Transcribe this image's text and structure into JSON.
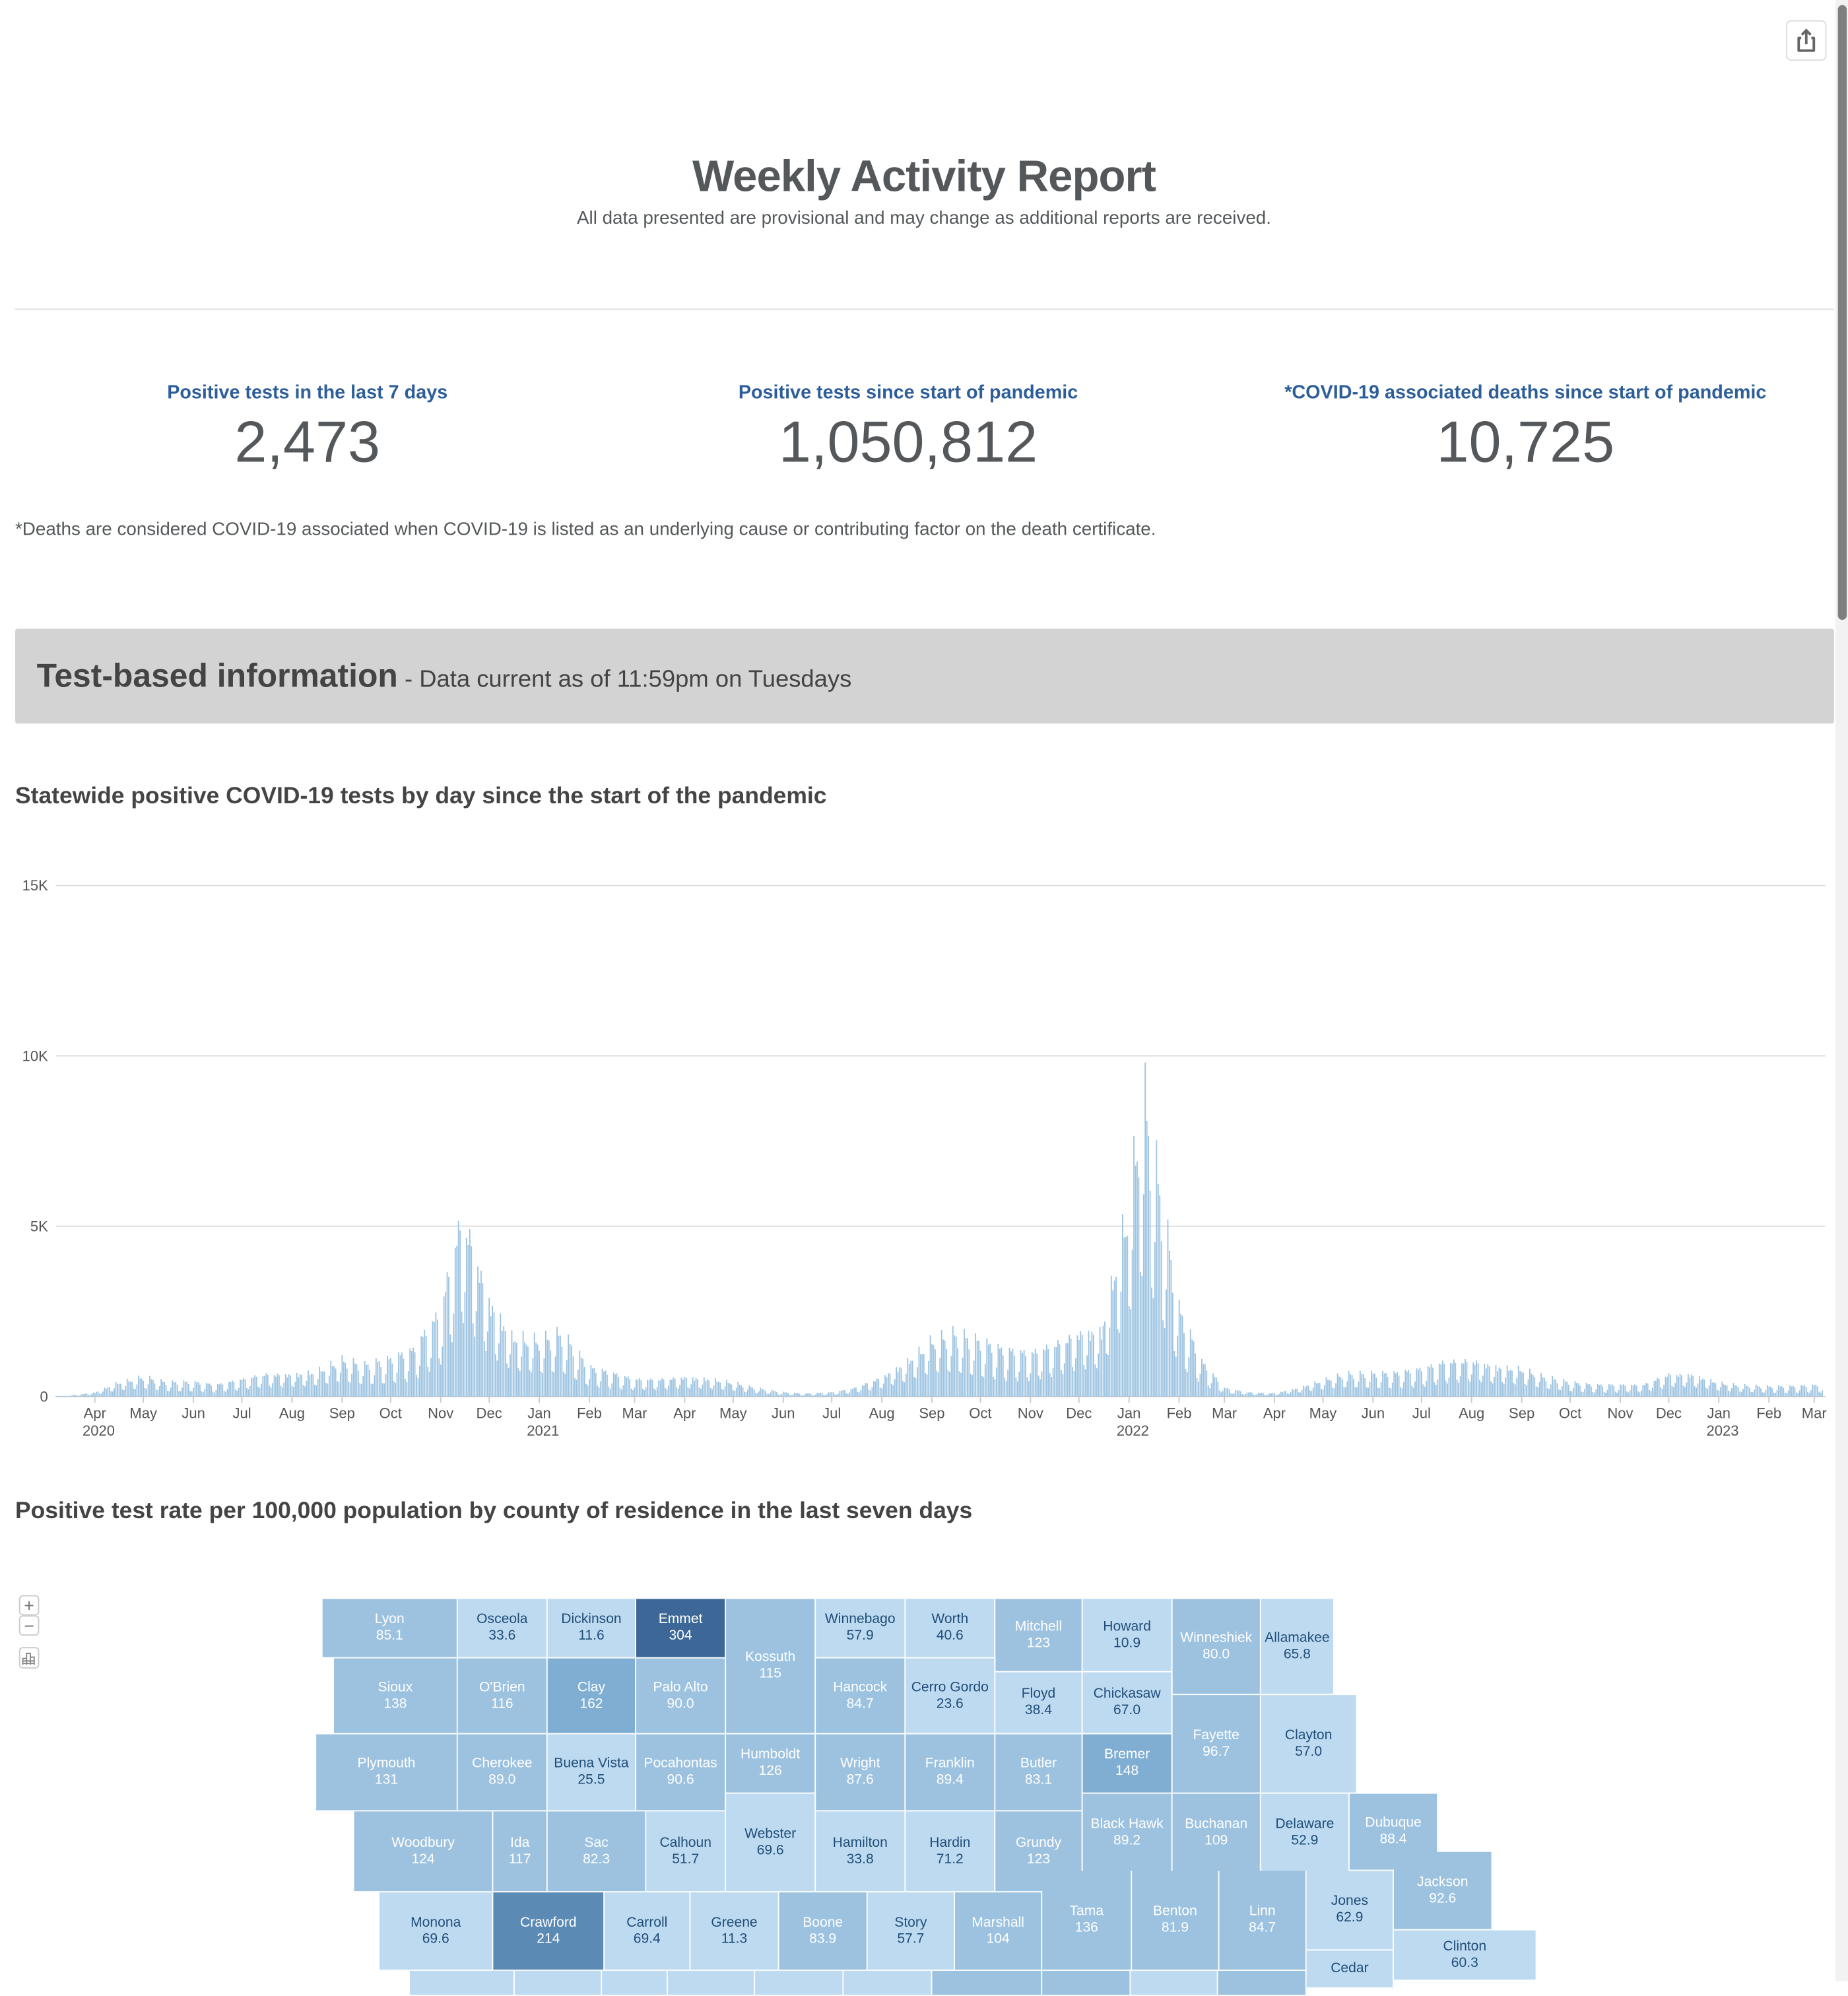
{
  "header": {
    "title": "Weekly Activity Report",
    "subtitle": "All data presented are provisional and may change as additional reports are received.",
    "share_icon": "share-icon"
  },
  "kpis": [
    {
      "label": "Positive tests in the last 7 days",
      "value": "2,473"
    },
    {
      "label": "Positive tests since start of pandemic",
      "value": "1,050,812"
    },
    {
      "label": "*COVID-19 associated deaths since start of pandemic",
      "value": "10,725"
    }
  ],
  "footnote": "*Deaths are considered COVID-19 associated when COVID-19 is listed as an underlying cause or contributing factor on the death certificate.",
  "banner": {
    "title": "Test-based information",
    "subtitle": " - Data current as of 11:59pm on Tuesdays"
  },
  "colors": {
    "kpi_label": "#2d5e99",
    "bar": "#9cc3e1",
    "map_light": "#bedaf0",
    "map_medium": "#9cc2e0",
    "map_darker": "#80aed3",
    "map_dark": "#5b8ab5",
    "map_darkest": "#3d6796",
    "banner_bg": "#d3d3d3"
  },
  "chart_title": "Statewide positive COVID-19 tests by day since the start of the pandemic",
  "chart_data": {
    "type": "bar",
    "title": "",
    "xlabel": "",
    "ylabel": "",
    "ylim": [
      0,
      15000
    ],
    "grid": true,
    "y_ticks": [
      "0",
      "5K",
      "10K",
      "15K"
    ],
    "y_tick_values": [
      0,
      5000,
      10000,
      15000
    ],
    "x_ticks": [
      {
        "label": "Apr",
        "year": "2020",
        "date": "2020-04-01"
      },
      {
        "label": "May",
        "date": "2020-05-01"
      },
      {
        "label": "Jun",
        "date": "2020-06-01"
      },
      {
        "label": "Jul",
        "date": "2020-07-01"
      },
      {
        "label": "Aug",
        "date": "2020-08-01"
      },
      {
        "label": "Sep",
        "date": "2020-09-01"
      },
      {
        "label": "Oct",
        "date": "2020-10-01"
      },
      {
        "label": "Nov",
        "date": "2020-11-01"
      },
      {
        "label": "Dec",
        "date": "2020-12-01"
      },
      {
        "label": "Jan",
        "year": "2021",
        "date": "2021-01-01"
      },
      {
        "label": "Feb",
        "date": "2021-02-01"
      },
      {
        "label": "Mar",
        "date": "2021-03-01"
      },
      {
        "label": "Apr",
        "date": "2021-04-01"
      },
      {
        "label": "May",
        "date": "2021-05-01"
      },
      {
        "label": "Jun",
        "date": "2021-06-01"
      },
      {
        "label": "Jul",
        "date": "2021-07-01"
      },
      {
        "label": "Aug",
        "date": "2021-08-01"
      },
      {
        "label": "Sep",
        "date": "2021-09-01"
      },
      {
        "label": "Oct",
        "date": "2021-10-01"
      },
      {
        "label": "Nov",
        "date": "2021-11-01"
      },
      {
        "label": "Dec",
        "date": "2021-12-01"
      },
      {
        "label": "Jan",
        "year": "2022",
        "date": "2022-01-01"
      },
      {
        "label": "Feb",
        "date": "2022-02-01"
      },
      {
        "label": "Mar",
        "date": "2022-03-01"
      },
      {
        "label": "Apr",
        "date": "2022-04-01"
      },
      {
        "label": "May",
        "date": "2022-05-01"
      },
      {
        "label": "Jun",
        "date": "2022-06-01"
      },
      {
        "label": "Jul",
        "date": "2022-07-01"
      },
      {
        "label": "Aug",
        "date": "2022-08-01"
      },
      {
        "label": "Sep",
        "date": "2022-09-01"
      },
      {
        "label": "Oct",
        "date": "2022-10-01"
      },
      {
        "label": "Nov",
        "date": "2022-11-01"
      },
      {
        "label": "Dec",
        "date": "2022-12-01"
      },
      {
        "label": "Jan",
        "year": "2023",
        "date": "2023-01-01"
      },
      {
        "label": "Feb",
        "date": "2023-02-01"
      },
      {
        "label": "Mar",
        "date": "2023-03-01"
      }
    ],
    "series": [
      {
        "x": [
          "2020-03-08",
          "2020-03-15",
          "2020-04-01",
          "2020-04-15",
          "2020-05-01",
          "2020-05-15",
          "2020-06-01",
          "2020-06-15",
          "2020-07-01",
          "2020-07-15",
          "2020-08-01",
          "2020-08-15",
          "2020-09-01",
          "2020-09-15",
          "2020-10-01",
          "2020-10-15",
          "2020-11-01",
          "2020-11-10",
          "2020-11-15",
          "2020-12-01",
          "2020-12-15",
          "2021-01-01",
          "2021-01-15",
          "2021-02-01",
          "2021-02-15",
          "2021-03-01",
          "2021-03-15",
          "2021-04-01",
          "2021-04-15",
          "2021-05-01",
          "2021-05-15",
          "2021-06-01",
          "2021-06-15",
          "2021-07-01",
          "2021-07-15",
          "2021-08-01",
          "2021-08-15",
          "2021-09-01",
          "2021-09-15",
          "2021-10-01",
          "2021-10-15",
          "2021-11-01",
          "2021-11-15",
          "2021-12-01",
          "2021-12-15",
          "2022-01-01",
          "2022-01-10",
          "2022-01-15",
          "2022-02-01",
          "2022-02-15",
          "2022-03-01",
          "2022-03-15",
          "2022-04-01",
          "2022-04-15",
          "2022-05-01",
          "2022-05-15",
          "2022-06-01",
          "2022-06-15",
          "2022-07-01",
          "2022-07-15",
          "2022-08-01",
          "2022-08-15",
          "2022-09-01",
          "2022-09-15",
          "2022-10-01",
          "2022-10-15",
          "2022-11-01",
          "2022-11-15",
          "2022-12-01",
          "2022-12-15",
          "2023-01-01",
          "2023-01-15",
          "2023-02-01",
          "2023-02-15",
          "2023-03-06"
        ],
        "values": [
          10,
          20,
          150,
          500,
          700,
          500,
          500,
          400,
          600,
          800,
          800,
          900,
          1300,
          1100,
          1300,
          1600,
          3000,
          5500,
          6500,
          3500,
          2200,
          2000,
          2200,
          1000,
          800,
          600,
          600,
          700,
          650,
          500,
          300,
          150,
          100,
          150,
          300,
          700,
          1200,
          2000,
          2200,
          1900,
          1600,
          1500,
          1800,
          2300,
          2400,
          7000,
          10800,
          9000,
          3000,
          1200,
          300,
          150,
          120,
          300,
          600,
          800,
          800,
          800,
          950,
          1200,
          1300,
          1100,
          1000,
          700,
          500,
          400,
          400,
          400,
          800,
          800,
          500,
          400,
          350,
          350,
          400
        ]
      }
    ]
  },
  "map_title": "Positive test rate per 100,000 population by county of residence in the last seven days",
  "map_controls": {
    "zoom_in": "+",
    "zoom_out": "−",
    "chart_icon": "chart-icon"
  },
  "counties": [
    {
      "name": "Lyon",
      "value": "85.1"
    },
    {
      "name": "Osceola",
      "value": "33.6"
    },
    {
      "name": "Dickinson",
      "value": "11.6"
    },
    {
      "name": "Emmet",
      "value": "304"
    },
    {
      "name": "Kossuth",
      "value": "115"
    },
    {
      "name": "Winnebago",
      "value": "57.9"
    },
    {
      "name": "Worth",
      "value": "40.6"
    },
    {
      "name": "Mitchell",
      "value": "123"
    },
    {
      "name": "Howard",
      "value": "10.9"
    },
    {
      "name": "Winneshiek",
      "value": "80.0"
    },
    {
      "name": "Allamakee",
      "value": "65.8"
    },
    {
      "name": "Sioux",
      "value": "138"
    },
    {
      "name": "O'Brien",
      "value": "116"
    },
    {
      "name": "Clay",
      "value": "162"
    },
    {
      "name": "Palo Alto",
      "value": "90.0"
    },
    {
      "name": "Hancock",
      "value": "84.7"
    },
    {
      "name": "Cerro Gordo",
      "value": "23.6"
    },
    {
      "name": "Floyd",
      "value": "38.4"
    },
    {
      "name": "Chickasaw",
      "value": "67.0"
    },
    {
      "name": "Fayette",
      "value": "96.7"
    },
    {
      "name": "Clayton",
      "value": "57.0"
    },
    {
      "name": "Plymouth",
      "value": "131"
    },
    {
      "name": "Cherokee",
      "value": "89.0"
    },
    {
      "name": "Buena Vista",
      "value": "25.5"
    },
    {
      "name": "Pocahontas",
      "value": "90.6"
    },
    {
      "name": "Humboldt",
      "value": "126"
    },
    {
      "name": "Wright",
      "value": "87.6"
    },
    {
      "name": "Franklin",
      "value": "89.4"
    },
    {
      "name": "Butler",
      "value": "83.1"
    },
    {
      "name": "Bremer",
      "value": "148"
    },
    {
      "name": "Black Hawk",
      "value": "89.2"
    },
    {
      "name": "Buchanan",
      "value": "109"
    },
    {
      "name": "Delaware",
      "value": "52.9"
    },
    {
      "name": "Dubuque",
      "value": "88.4"
    },
    {
      "name": "Woodbury",
      "value": "124"
    },
    {
      "name": "Ida",
      "value": "117"
    },
    {
      "name": "Sac",
      "value": "82.3"
    },
    {
      "name": "Calhoun",
      "value": "51.7"
    },
    {
      "name": "Webster",
      "value": "69.6"
    },
    {
      "name": "Hamilton",
      "value": "33.8"
    },
    {
      "name": "Hardin",
      "value": "71.2"
    },
    {
      "name": "Grundy",
      "value": "123"
    },
    {
      "name": "Monona",
      "value": "69.6"
    },
    {
      "name": "Crawford",
      "value": "214"
    },
    {
      "name": "Carroll",
      "value": "69.4"
    },
    {
      "name": "Greene",
      "value": "11.3"
    },
    {
      "name": "Boone",
      "value": "83.9"
    },
    {
      "name": "Story",
      "value": "57.7"
    },
    {
      "name": "Marshall",
      "value": "104"
    },
    {
      "name": "Tama",
      "value": "136"
    },
    {
      "name": "Benton",
      "value": "81.9"
    },
    {
      "name": "Linn",
      "value": "84.7"
    },
    {
      "name": "Jones",
      "value": "62.9"
    },
    {
      "name": "Jackson",
      "value": "92.6"
    },
    {
      "name": "Clinton",
      "value": "60.3"
    },
    {
      "name": "Cedar",
      "value": ""
    }
  ]
}
